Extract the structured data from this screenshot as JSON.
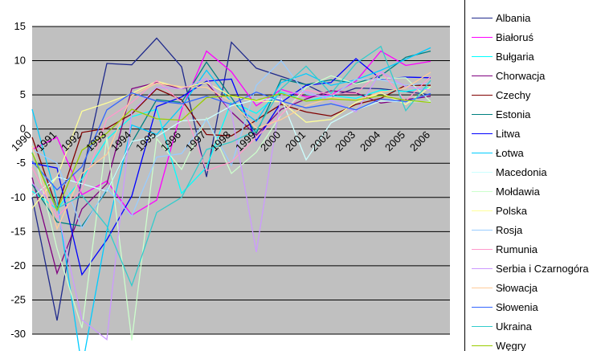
{
  "chart_data": {
    "type": "line",
    "categories": [
      "1990",
      "1991",
      "1992",
      "1993",
      "1994",
      "1995",
      "1996",
      "1997",
      "1998",
      "1999",
      "2000",
      "2001",
      "2002",
      "2003",
      "2004",
      "2005",
      "2006"
    ],
    "ylim": [
      -30,
      15
    ],
    "yticks": [
      15,
      10,
      5,
      0,
      -5,
      -10,
      -15,
      -20,
      -25,
      -30
    ],
    "grid": "horizontal",
    "plot_background": "#c0c0c0",
    "legend_position": "right",
    "series": [
      {
        "name": "Albania",
        "color": "#1f2a8c",
        "values": [
          -10,
          -28,
          -7,
          9.6,
          9.4,
          13.3,
          9.1,
          -7,
          12.7,
          8.9,
          7.7,
          6.5,
          4.7,
          6,
          5.9,
          5.5,
          5
        ]
      },
      {
        "name": "Białoruś",
        "color": "#ff00ff",
        "values": [
          -3,
          -1.2,
          -9.6,
          -7.6,
          -12.6,
          -10.4,
          2.8,
          11.4,
          8.4,
          3.4,
          5.8,
          4.7,
          5,
          7,
          11.4,
          9.3,
          9.9
        ]
      },
      {
        "name": "Bułgaria",
        "color": "#00ffff",
        "values": [
          -9.1,
          -11.7,
          -7.3,
          -1.5,
          1.8,
          2.9,
          -9.4,
          -5.6,
          4,
          2.3,
          5.4,
          4.1,
          4.9,
          4.5,
          5.7,
          5.5,
          6.1
        ]
      },
      {
        "name": "Chorwacja",
        "color": "#800080",
        "values": [
          -7.1,
          -21.1,
          -11.7,
          -8,
          5.9,
          6.8,
          5.9,
          6.8,
          2.5,
          -0.9,
          2.9,
          4.4,
          5.6,
          5.3,
          3.8,
          4.3,
          4.8
        ]
      },
      {
        "name": "Czechy",
        "color": "#800000",
        "values": [
          -1.2,
          -11.6,
          -0.5,
          0.1,
          2.2,
          5.9,
          4.3,
          -0.8,
          -1,
          1.3,
          3.6,
          2.5,
          1.9,
          3.6,
          4.5,
          6.4,
          6.4
        ]
      },
      {
        "name": "Estonia",
        "color": "#008080",
        "values": [
          -8.1,
          -13.6,
          -14.2,
          -9,
          -2,
          4.3,
          3.9,
          9.8,
          4.6,
          -0.6,
          7.3,
          6.5,
          7.2,
          6.7,
          7.8,
          10.5,
          11.4
        ]
      },
      {
        "name": "Litwa",
        "color": "#0000ff",
        "values": [
          -5,
          -5.7,
          -21.3,
          -16.2,
          -9.8,
          3.3,
          4.7,
          7,
          7.3,
          -1.7,
          3.9,
          6.4,
          6.8,
          10.3,
          7.3,
          7.6,
          7.5
        ]
      },
      {
        "name": "Łotwa",
        "color": "#00ccff",
        "values": [
          2.9,
          -10.4,
          -34.9,
          -14.9,
          0.6,
          -0.8,
          3.3,
          8.6,
          3.9,
          1.1,
          6.8,
          8.1,
          6.4,
          7.2,
          8.6,
          10.2,
          11.9
        ]
      },
      {
        "name": "Macedonia",
        "color": "#ccffff",
        "values": [
          -9.9,
          -7,
          -8,
          -9.1,
          -1.8,
          -1.1,
          1.2,
          1.4,
          3.4,
          4.3,
          4.5,
          -4.5,
          0.9,
          2.8,
          4.1,
          4,
          4
        ]
      },
      {
        "name": "Mołdawia",
        "color": "#ccffcc",
        "values": [
          -2.4,
          -17.5,
          -29.1,
          -1.2,
          -30.9,
          -1.4,
          -5.9,
          1.6,
          -6.5,
          -3.4,
          2.1,
          6.1,
          7.8,
          6.6,
          7.4,
          7.5,
          4
        ]
      },
      {
        "name": "Polska",
        "color": "#ffff99",
        "values": [
          -11.6,
          -7,
          2.6,
          3.8,
          5.2,
          7,
          6,
          6.8,
          4.8,
          4.1,
          4,
          1,
          1.4,
          3.9,
          5.3,
          3.6,
          6.2
        ]
      },
      {
        "name": "Rosja",
        "color": "#99ccff",
        "values": [
          -3,
          -5,
          -14.5,
          -8.7,
          -12.7,
          -4.1,
          -3.6,
          1.4,
          -5.3,
          6.4,
          10,
          5.1,
          4.7,
          7.3,
          7.2,
          6.4,
          6.7
        ]
      },
      {
        "name": "Rumunia",
        "color": "#ff99cc",
        "values": [
          -5.6,
          -12.9,
          -8.8,
          1.5,
          3.9,
          7.1,
          3.9,
          -6.1,
          -4.8,
          -1.2,
          2.1,
          5.7,
          5.1,
          5.2,
          8.4,
          4.1,
          7.7
        ]
      },
      {
        "name": "Serbia i Czarnogóra",
        "color": "#cc99ff",
        "values": [
          -7.9,
          -11.6,
          -27.9,
          -30.8,
          2.5,
          6.1,
          5.9,
          7.4,
          2.5,
          -18,
          5,
          5.5,
          4.2,
          2.5,
          8.4,
          6.2,
          5.7
        ]
      },
      {
        "name": "Słowacja",
        "color": "#ffcc99",
        "values": [
          -2.5,
          -14.6,
          -6.5,
          -3.7,
          4.9,
          6.7,
          6.2,
          6.1,
          4,
          0.1,
          1.4,
          3.4,
          4.6,
          4.2,
          5.4,
          6,
          8.3
        ]
      },
      {
        "name": "Słowenia",
        "color": "#3366ff",
        "values": [
          -4.7,
          -8.9,
          -5.5,
          2.8,
          5.3,
          4.1,
          3.7,
          4.8,
          3.6,
          5.4,
          4.1,
          3.1,
          3.7,
          2.8,
          4.4,
          4,
          5.2
        ]
      },
      {
        "name": "Ukraina",
        "color": "#33cccc",
        "values": [
          -3.4,
          -11.6,
          -9.7,
          -14.2,
          -22.9,
          -12.2,
          -10,
          -3,
          -1.9,
          -0.2,
          5.9,
          9.2,
          5.2,
          9.6,
          12.1,
          2.7,
          7.1
        ]
      },
      {
        "name": "Węgry",
        "color": "#99cc00",
        "values": [
          -3.5,
          -11.9,
          -3.1,
          -0.6,
          2.9,
          1.5,
          1.3,
          4.6,
          4.9,
          4.2,
          5.2,
          4.1,
          4.4,
          4.2,
          4.9,
          4.2,
          3.9
        ]
      }
    ]
  }
}
